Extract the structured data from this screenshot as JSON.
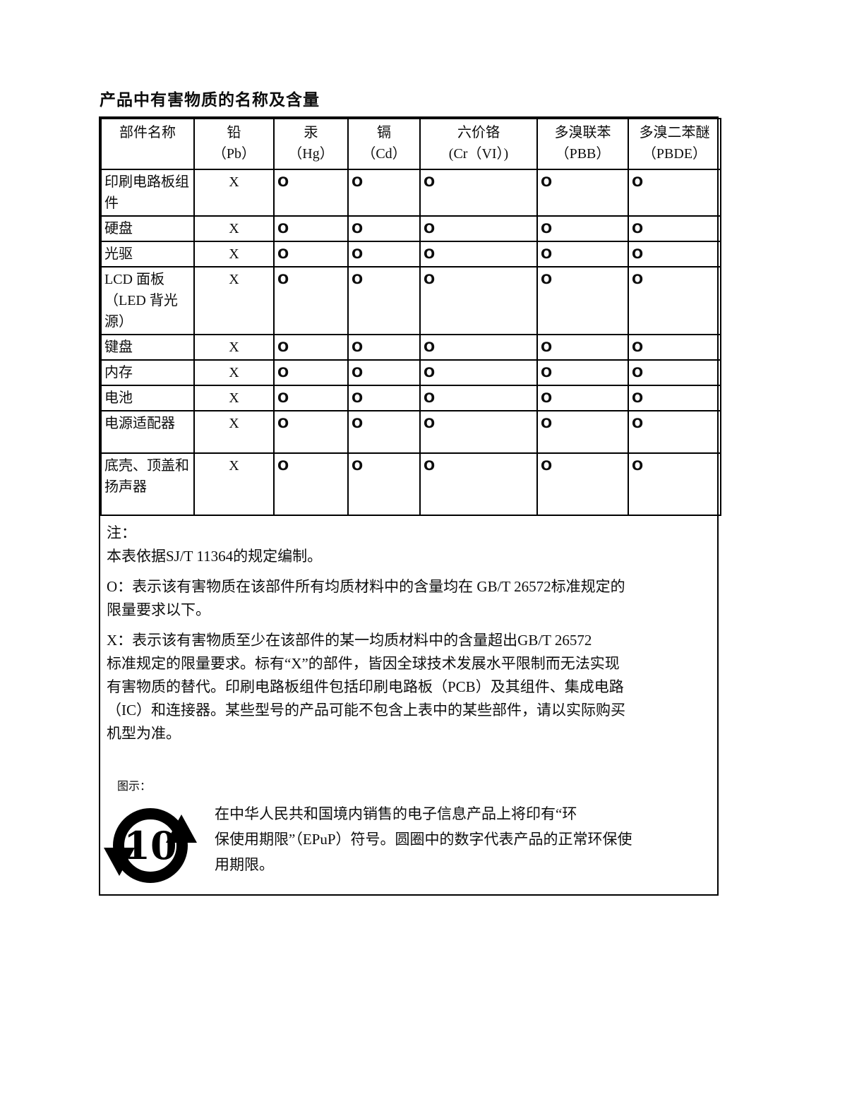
{
  "title": "产品中有害物质的名称及含量",
  "ink_color": "#000000",
  "table": {
    "columns": [
      {
        "label": "部件名称",
        "sub": ""
      },
      {
        "label": "铅",
        "sub": "（Pb）"
      },
      {
        "label": "汞",
        "sub": "（Hg）"
      },
      {
        "label": "镉",
        "sub": "（Cd）"
      },
      {
        "label": "六价铬",
        "sub": "(Cr（VI）)"
      },
      {
        "label": "多溴联苯",
        "sub": "（PBB）"
      },
      {
        "label": "多溴二苯醚",
        "sub": "（PBDE）"
      }
    ],
    "rows": [
      {
        "part": "印刷电路板组件",
        "values": [
          "X",
          "O",
          "O",
          "O",
          "O",
          "O"
        ]
      },
      {
        "part": "硬盘",
        "values": [
          "X",
          "O",
          "O",
          "O",
          "O",
          "O"
        ]
      },
      {
        "part": "光驱",
        "values": [
          "X",
          "O",
          "O",
          "O",
          "O",
          "O"
        ]
      },
      {
        "part": "LCD 面板（LED 背光源）",
        "values": [
          "X",
          "O",
          "O",
          "O",
          "O",
          "O"
        ]
      },
      {
        "part": "键盘",
        "values": [
          "X",
          "O",
          "O",
          "O",
          "O",
          "O"
        ]
      },
      {
        "part": "内存",
        "values": [
          "X",
          "O",
          "O",
          "O",
          "O",
          "O"
        ]
      },
      {
        "part": "电池",
        "values": [
          "X",
          "O",
          "O",
          "O",
          "O",
          "O"
        ]
      },
      {
        "part": "电源适配器",
        "values": [
          "X",
          "O",
          "O",
          "O",
          "O",
          "O"
        ]
      },
      {
        "part": "底壳、顶盖和扬声器",
        "values": [
          "X",
          "O",
          "O",
          "O",
          "O",
          "O"
        ]
      }
    ]
  },
  "notes": {
    "blocks": [
      {
        "lines": [
          "注：",
          "本表依据SJ/T 11364的规定编制。"
        ]
      },
      {
        "lines": [
          "O：表示该有害物质在该部件所有均质材料中的含量均在 GB/T 26572标准规定的",
          "限量要求以下。"
        ]
      },
      {
        "lines": [
          "X：表示该有害物质至少在该部件的某一均质材料中的含量超出GB/T 26572",
          "标准规定的限量要求。标有“X”的部件，皆因全球技术发展水平限制而无法实现",
          "有害物质的替代。印刷电路板组件包括印刷电路板（PCB）及其组件、集成电路",
          "（IC）和连接器。某些型号的产品可能不包含上表中的某些部件，请以实际购买",
          "机型为准。"
        ]
      }
    ]
  },
  "legend": {
    "label": "图示：",
    "logo_number": "10",
    "lines": [
      "在中华人民共和国境内销售的电子信息产品上将印有“环",
      "保使用期限”（EPuP）符号。圆圈中的数字代表产品的正常环保使",
      "用期限。"
    ]
  }
}
